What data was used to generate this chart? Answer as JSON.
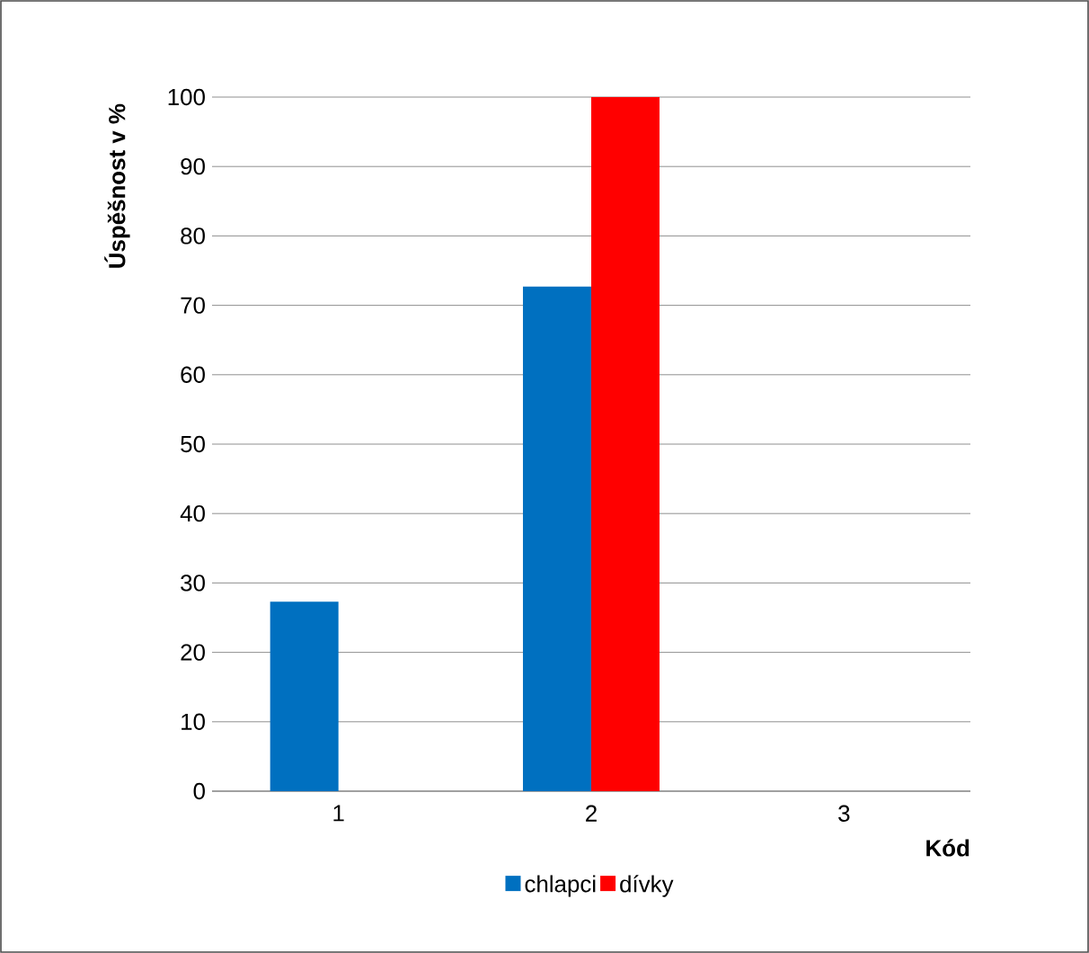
{
  "chart_data": {
    "type": "bar",
    "categories": [
      "1",
      "2",
      "3"
    ],
    "series": [
      {
        "name": "chlapci",
        "color": "#0070c0",
        "values": [
          27.3,
          72.7,
          0
        ]
      },
      {
        "name": "dívky",
        "color": "#ff0000",
        "values": [
          0,
          100,
          0
        ]
      }
    ],
    "xlabel": "Kód",
    "ylabel": "Úspěšnost v %",
    "ylim": [
      0,
      100
    ],
    "yticks": [
      0,
      10,
      20,
      30,
      40,
      50,
      60,
      70,
      80,
      90,
      100
    ],
    "grid": "y",
    "legend": "bottom"
  }
}
